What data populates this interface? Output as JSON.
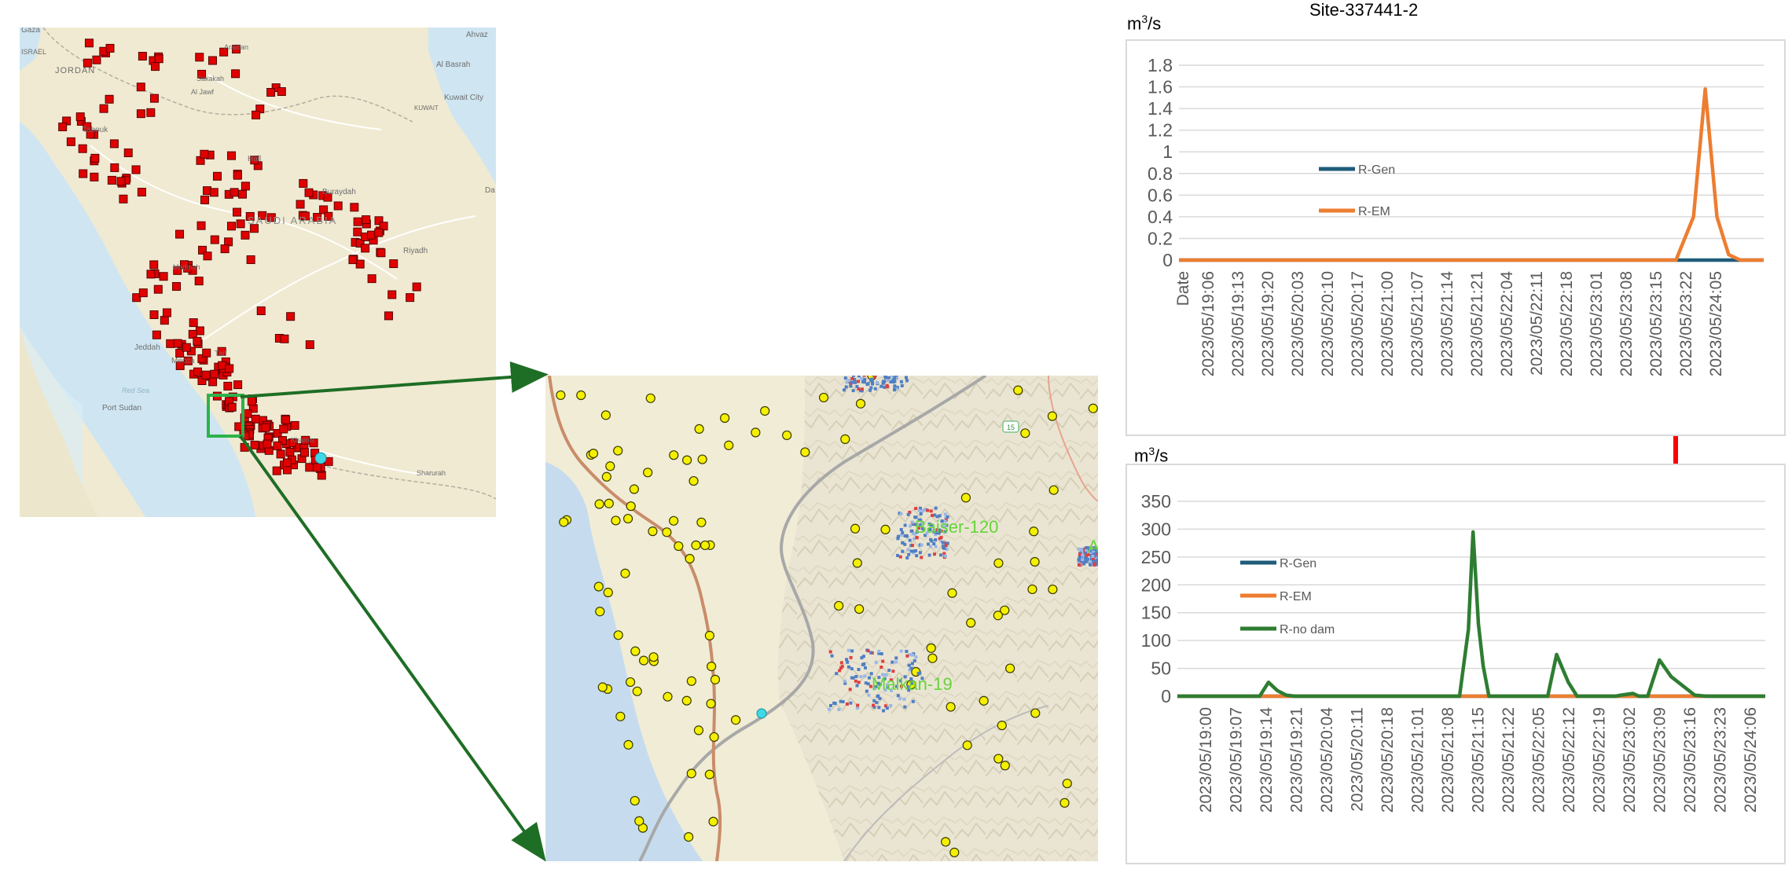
{
  "maps": {
    "overview": {
      "labels": {
        "gaza": "Gaza",
        "israel": "ISRAEL",
        "jordan": "JORDAN",
        "araidan": "Araidan",
        "sakakah": "Sakakah",
        "al_jawf": "Al Jawf",
        "ahvaz": "Ahvaz",
        "al_basrah": "Al Basrah",
        "kuwait": "KUWAIT",
        "kuwait_city": "Kuwait City",
        "tabouk": "Tabouk",
        "hail": "Hail",
        "buraydah": "Buraydah",
        "saudi_arabia": "SAUDI ARABIA",
        "riyadh": "Riyadh",
        "da": "Da",
        "madinah": "Madinah",
        "jeddah": "Jeddah",
        "mecca": "Mecca",
        "taif": "Taif",
        "red_sea": "Red Sea",
        "port_sudan": "Port Sudan",
        "khamis": "Khamis",
        "sharurah": "Sharurah"
      }
    },
    "detail": {
      "site_labels": [
        "Baiser-120",
        "Malkan-19"
      ],
      "edge_label": "A",
      "route_label": "15"
    }
  },
  "charts": {
    "title": "Site-337441-2",
    "unit": {
      "base": "m",
      "exp": "3",
      "rest": "/s"
    },
    "colors": {
      "gen": "#1f5c7a",
      "em": "#ed7d31",
      "nodam": "#2e7d32",
      "highlight": "#ff0000",
      "grid": "#d9d9d9",
      "axis_text": "#595959"
    }
  },
  "chart_data": [
    {
      "type": "line",
      "x_axis_title": "Date",
      "x_tick_labels": [
        "2023/05/19:06",
        "2023/05/19:13",
        "2023/05/19:20",
        "2023/05/20:03",
        "2023/05/20:10",
        "2023/05/20:17",
        "2023/05/21:00",
        "2023/05/21:07",
        "2023/05/21:14",
        "2023/05/21:21",
        "2023/05/22:04",
        "2023/05/22:11",
        "2023/05/22:18",
        "2023/05/23:01",
        "2023/05/23:08",
        "2023/05/23:15",
        "2023/05/23:22",
        "2023/05/24:05"
      ],
      "x": [
        0,
        0.85,
        0.88,
        0.9,
        0.92,
        0.94,
        0.96,
        1.0
      ],
      "ylim": [
        0,
        1.8
      ],
      "yticks": [
        0,
        0.2,
        0.4,
        0.6,
        0.8,
        1,
        1.2,
        1.4,
        1.6,
        1.8
      ],
      "grid": true,
      "legend_placement": "center-left",
      "series": [
        {
          "name": "R-Gen",
          "values": [
            0,
            0,
            0,
            0,
            0,
            0,
            0,
            0
          ]
        },
        {
          "name": "R-EM",
          "values": [
            0,
            0,
            0.4,
            1.58,
            0.4,
            0.05,
            0,
            0
          ]
        }
      ]
    },
    {
      "type": "line",
      "x_tick_labels": [
        "2023/05/19:00",
        "2023/05/19:07",
        "2023/05/19:14",
        "2023/05/19:21",
        "2023/05/20:04",
        "2023/05/20:11",
        "2023/05/20:18",
        "2023/05/21:01",
        "2023/05/21:08",
        "2023/05/21:15",
        "2023/05/21:22",
        "2023/05/22:05",
        "2023/05/22:12",
        "2023/05/22:19",
        "2023/05/23:02",
        "2023/05/23:09",
        "2023/05/23:16",
        "2023/05/23:23",
        "2023/05/24:06"
      ],
      "x": [
        0,
        0.14,
        0.155,
        0.17,
        0.185,
        0.2,
        0.48,
        0.495,
        0.503,
        0.512,
        0.52,
        0.53,
        0.63,
        0.645,
        0.655,
        0.665,
        0.68,
        0.745,
        0.755,
        0.775,
        0.785,
        0.8,
        0.82,
        0.84,
        0.88,
        0.9,
        1.0
      ],
      "ylim": [
        0,
        350
      ],
      "yticks": [
        0,
        50,
        100,
        150,
        200,
        250,
        300,
        350
      ],
      "grid": true,
      "legend_placement": "center-left",
      "series": [
        {
          "name": "R-Gen",
          "values": [
            0,
            0,
            0,
            0,
            0,
            0,
            0,
            0,
            0,
            0,
            0,
            0,
            0,
            0,
            0,
            0,
            0,
            0,
            0,
            0,
            0,
            0,
            0,
            0,
            0,
            0,
            0
          ]
        },
        {
          "name": "R-EM",
          "values": [
            0,
            0,
            0,
            0,
            0,
            0,
            0,
            0,
            0,
            0,
            0,
            0,
            0,
            0,
            0,
            0,
            0,
            0,
            0,
            0,
            0,
            0,
            0,
            0,
            0,
            0,
            0
          ]
        },
        {
          "name": "R-no dam",
          "values": [
            0,
            0,
            25,
            10,
            2,
            0,
            0,
            120,
            295,
            130,
            55,
            0,
            0,
            75,
            50,
            25,
            0,
            0,
            2,
            5,
            0,
            0,
            65,
            35,
            2,
            0,
            0
          ]
        }
      ]
    }
  ]
}
